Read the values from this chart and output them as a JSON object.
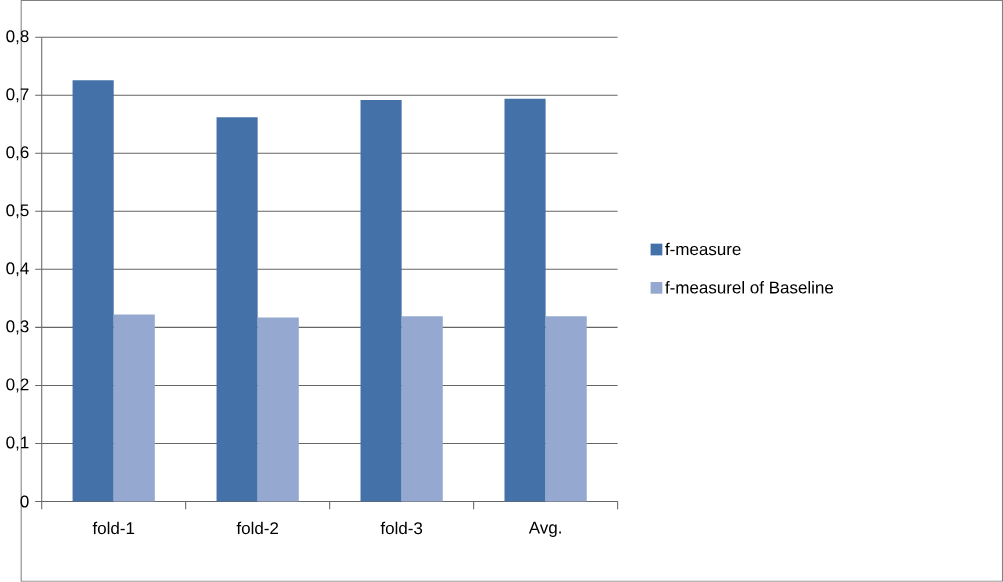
{
  "chart_data": {
    "type": "bar",
    "categories": [
      "fold-1",
      "fold-2",
      "fold-3",
      "Avg."
    ],
    "series": [
      {
        "name": "f-measure",
        "color": "#4472a8",
        "values": [
          0.726,
          0.662,
          0.692,
          0.694
        ]
      },
      {
        "name": "f-measurel of Baseline",
        "color": "#95a9d0",
        "values": [
          0.322,
          0.317,
          0.319,
          0.319
        ]
      }
    ],
    "ylim": [
      0,
      0.8
    ],
    "yticks": [
      0,
      {
        "value": 0.1,
        "label": "0,1"
      },
      {
        "value": 0.2,
        "label": "0,2"
      },
      {
        "value": 0.3,
        "label": "0,3"
      },
      {
        "value": 0.4,
        "label": "0,4"
      },
      {
        "value": 0.5,
        "label": "0,5"
      },
      {
        "value": 0.6,
        "label": "0,6"
      },
      {
        "value": 0.7,
        "label": "0,7"
      },
      {
        "value": 0.8,
        "label": "0,8"
      }
    ],
    "grid": "y",
    "legend": "right"
  }
}
